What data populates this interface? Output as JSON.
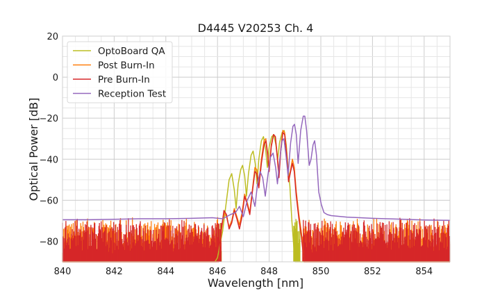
{
  "chart_data": {
    "type": "line",
    "title": "D4445 V20253 Ch. 4",
    "xlabel": "Wavelength [nm]",
    "ylabel": "Optical Power [dB]",
    "xlim": [
      840,
      855
    ],
    "ylim": [
      -90,
      20
    ],
    "x_ticks": [
      "840",
      "842",
      "844",
      "846",
      "848",
      "850",
      "852",
      "854"
    ],
    "x_tick_values": [
      840,
      842,
      844,
      846,
      848,
      850,
      852,
      854
    ],
    "y_ticks": [
      "20",
      "0",
      "−20",
      "−40",
      "−60",
      "−80"
    ],
    "y_tick_values": [
      20,
      0,
      -20,
      -40,
      -60,
      -80
    ],
    "grid": true,
    "legend_position": "top-left",
    "noise_floor": -90,
    "series": [
      {
        "name": "OptoBoard QA",
        "color": "#bcbd22",
        "points": [
          [
            840,
            -90
          ],
          [
            845.9,
            -90
          ],
          [
            846.0,
            -88
          ],
          [
            846.2,
            -75
          ],
          [
            846.35,
            -60
          ],
          [
            846.45,
            -50
          ],
          [
            846.55,
            -47
          ],
          [
            846.65,
            -55
          ],
          [
            846.72,
            -64
          ],
          [
            846.8,
            -52
          ],
          [
            846.9,
            -45
          ],
          [
            846.97,
            -43
          ],
          [
            847.05,
            -48
          ],
          [
            847.12,
            -58
          ],
          [
            847.2,
            -47
          ],
          [
            847.3,
            -38
          ],
          [
            847.38,
            -36
          ],
          [
            847.46,
            -42
          ],
          [
            847.53,
            -52
          ],
          [
            847.6,
            -40
          ],
          [
            847.7,
            -31
          ],
          [
            847.78,
            -29
          ],
          [
            847.86,
            -35
          ],
          [
            847.93,
            -44
          ],
          [
            848.0,
            -34
          ],
          [
            848.1,
            -29
          ],
          [
            848.18,
            -28
          ],
          [
            848.26,
            -33
          ],
          [
            848.33,
            -40
          ],
          [
            848.4,
            -32
          ],
          [
            848.5,
            -27
          ],
          [
            848.58,
            -26
          ],
          [
            848.66,
            -33
          ],
          [
            848.72,
            -43
          ],
          [
            848.8,
            -53
          ],
          [
            848.88,
            -70
          ],
          [
            848.95,
            -82
          ],
          [
            849.0,
            -90
          ],
          [
            855,
            -90
          ]
        ]
      },
      {
        "name": "Post Burn-In",
        "color": "#ff7f0e",
        "points": [
          [
            840,
            -90
          ],
          [
            846.05,
            -90
          ],
          [
            846.15,
            -75
          ],
          [
            846.25,
            -66
          ],
          [
            846.35,
            -68
          ],
          [
            846.45,
            -73
          ],
          [
            846.55,
            -70
          ],
          [
            846.65,
            -64
          ],
          [
            846.75,
            -68
          ],
          [
            846.85,
            -72
          ],
          [
            846.95,
            -66
          ],
          [
            847.05,
            -57
          ],
          [
            847.15,
            -61
          ],
          [
            847.25,
            -66
          ],
          [
            847.35,
            -55
          ],
          [
            847.45,
            -44
          ],
          [
            847.52,
            -45
          ],
          [
            847.6,
            -52
          ],
          [
            847.7,
            -40
          ],
          [
            847.8,
            -31
          ],
          [
            847.87,
            -30
          ],
          [
            847.94,
            -37
          ],
          [
            848.0,
            -44
          ],
          [
            848.08,
            -33
          ],
          [
            848.17,
            -28
          ],
          [
            848.24,
            -29
          ],
          [
            848.32,
            -39
          ],
          [
            848.38,
            -47
          ],
          [
            848.45,
            -35
          ],
          [
            848.53,
            -26
          ],
          [
            848.6,
            -27
          ],
          [
            848.68,
            -37
          ],
          [
            848.75,
            -50
          ],
          [
            848.83,
            -45
          ],
          [
            848.9,
            -40
          ],
          [
            848.97,
            -44
          ],
          [
            849.05,
            -56
          ],
          [
            849.15,
            -67
          ],
          [
            849.25,
            -76
          ],
          [
            849.35,
            -90
          ],
          [
            855,
            -90
          ]
        ]
      },
      {
        "name": "Pre Burn-In",
        "color": "#d62728",
        "points": [
          [
            840,
            -90
          ],
          [
            846.05,
            -90
          ],
          [
            846.15,
            -74
          ],
          [
            846.25,
            -65
          ],
          [
            846.35,
            -67
          ],
          [
            846.45,
            -74
          ],
          [
            846.55,
            -71
          ],
          [
            846.65,
            -65
          ],
          [
            846.75,
            -69
          ],
          [
            846.85,
            -74
          ],
          [
            846.95,
            -68
          ],
          [
            847.05,
            -58
          ],
          [
            847.15,
            -62
          ],
          [
            847.25,
            -67
          ],
          [
            847.35,
            -56
          ],
          [
            847.45,
            -46
          ],
          [
            847.52,
            -47
          ],
          [
            847.6,
            -54
          ],
          [
            847.7,
            -42
          ],
          [
            847.8,
            -33
          ],
          [
            847.87,
            -31
          ],
          [
            847.94,
            -38
          ],
          [
            848.0,
            -46
          ],
          [
            848.08,
            -34
          ],
          [
            848.17,
            -28
          ],
          [
            848.24,
            -29
          ],
          [
            848.32,
            -40
          ],
          [
            848.38,
            -49
          ],
          [
            848.45,
            -36
          ],
          [
            848.53,
            -27
          ],
          [
            848.6,
            -28
          ],
          [
            848.68,
            -38
          ],
          [
            848.75,
            -51
          ],
          [
            848.83,
            -46
          ],
          [
            848.9,
            -42
          ],
          [
            848.97,
            -46
          ],
          [
            849.05,
            -58
          ],
          [
            849.15,
            -69
          ],
          [
            849.25,
            -78
          ],
          [
            849.35,
            -90
          ],
          [
            855,
            -90
          ]
        ]
      },
      {
        "name": "Reception Test",
        "color": "#9467bd",
        "points": [
          [
            840,
            -69.5
          ],
          [
            841,
            -69.5
          ],
          [
            842,
            -69.3
          ],
          [
            843,
            -69.0
          ],
          [
            844,
            -69.0
          ],
          [
            845,
            -68.8
          ],
          [
            845.8,
            -68.5
          ],
          [
            846.2,
            -69
          ],
          [
            846.5,
            -67
          ],
          [
            846.7,
            -66
          ],
          [
            846.85,
            -63
          ],
          [
            847.0,
            -68
          ],
          [
            847.15,
            -60
          ],
          [
            847.3,
            -56
          ],
          [
            847.45,
            -63
          ],
          [
            847.55,
            -52
          ],
          [
            847.65,
            -46
          ],
          [
            847.75,
            -49
          ],
          [
            847.85,
            -58
          ],
          [
            847.95,
            -48
          ],
          [
            848.05,
            -39
          ],
          [
            848.15,
            -37
          ],
          [
            848.25,
            -44
          ],
          [
            848.32,
            -52
          ],
          [
            848.42,
            -39
          ],
          [
            848.5,
            -31
          ],
          [
            848.57,
            -30
          ],
          [
            848.65,
            -38
          ],
          [
            848.73,
            -48
          ],
          [
            848.83,
            -32
          ],
          [
            848.92,
            -24
          ],
          [
            848.98,
            -23
          ],
          [
            849.05,
            -28
          ],
          [
            849.12,
            -42
          ],
          [
            849.22,
            -26
          ],
          [
            849.32,
            -19
          ],
          [
            849.38,
            -19
          ],
          [
            849.45,
            -26
          ],
          [
            849.55,
            -43
          ],
          [
            849.62,
            -40
          ],
          [
            849.7,
            -33
          ],
          [
            849.76,
            -31
          ],
          [
            849.83,
            -38
          ],
          [
            849.92,
            -56
          ],
          [
            850.02,
            -62
          ],
          [
            850.12,
            -66
          ],
          [
            850.25,
            -67
          ],
          [
            850.4,
            -67.5
          ],
          [
            851,
            -68.2
          ],
          [
            852,
            -68.8
          ],
          [
            853,
            -69.2
          ],
          [
            854,
            -69.6
          ],
          [
            855,
            -69.8
          ]
        ]
      }
    ]
  }
}
